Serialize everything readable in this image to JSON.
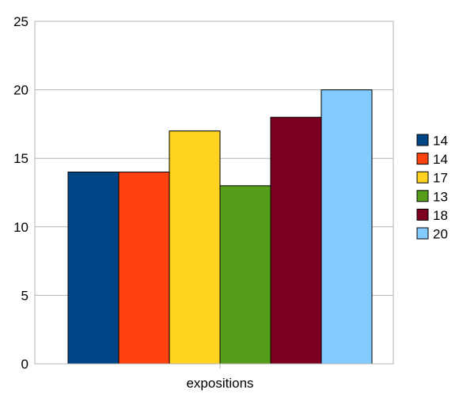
{
  "chart_data": {
    "type": "bar",
    "categories": [
      "expositions"
    ],
    "series": [
      {
        "name": "14",
        "values": [
          14
        ],
        "color": "#004586"
      },
      {
        "name": "14",
        "values": [
          14
        ],
        "color": "#ff420e"
      },
      {
        "name": "17",
        "values": [
          17
        ],
        "color": "#ffd320"
      },
      {
        "name": "13",
        "values": [
          13
        ],
        "color": "#579d1c"
      },
      {
        "name": "18",
        "values": [
          18
        ],
        "color": "#7e0021"
      },
      {
        "name": "20",
        "values": [
          20
        ],
        "color": "#83caff"
      }
    ],
    "ylim": [
      0,
      25
    ],
    "yticks": [
      0,
      5,
      10,
      15,
      20,
      25
    ],
    "grid": true,
    "legend_position": "right",
    "title": "",
    "xlabel": "",
    "ylabel": ""
  }
}
